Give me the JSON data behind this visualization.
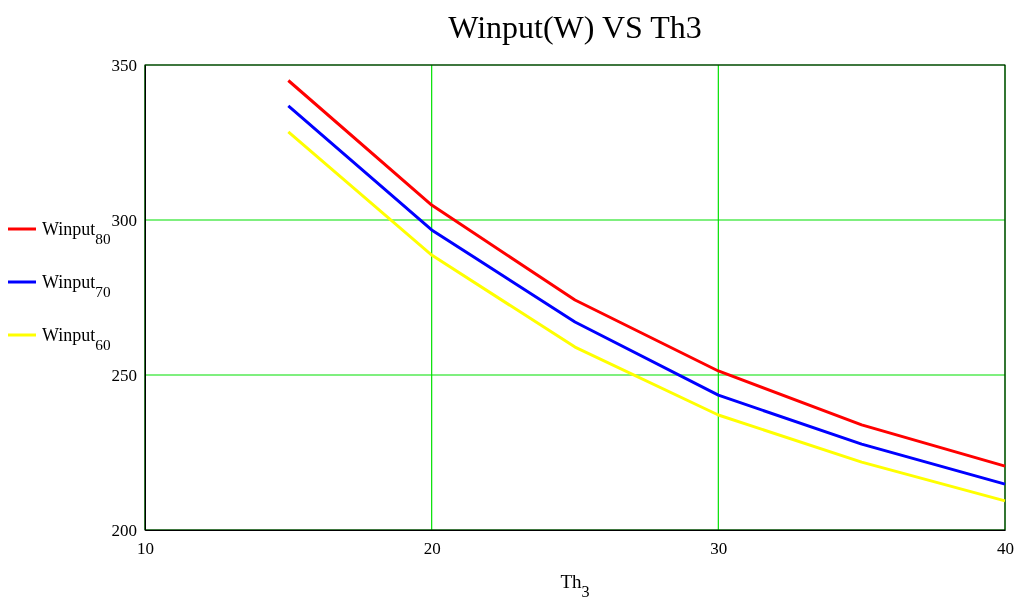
{
  "chart_data": {
    "type": "line",
    "title": "Winput(W) VS Th3",
    "xlabel": "Th$_{3}$",
    "x": [
      15,
      20,
      25,
      30,
      35,
      40
    ],
    "series": [
      {
        "name": "Winput$_{80}$",
        "color": "#ff0000",
        "values": [
          345,
          304.8,
          274.2,
          251.3,
          233.9,
          220.6
        ]
      },
      {
        "name": "Winput$_{70}$",
        "color": "#0000ff",
        "values": [
          336.8,
          296.8,
          267.1,
          243.5,
          227.7,
          214.8
        ]
      },
      {
        "name": "Winput$_{60}$",
        "color": "#ffff00",
        "values": [
          328.4,
          288.7,
          259,
          237.1,
          221.9,
          209.4
        ]
      }
    ],
    "xlim": [
      10,
      40
    ],
    "xticks": [
      10,
      20,
      30,
      40
    ],
    "ylim": [
      200,
      350
    ],
    "yticks": [
      200,
      250,
      300,
      350
    ],
    "grid": true,
    "legend": "left",
    "marker": "none",
    "line_style": "solid"
  }
}
